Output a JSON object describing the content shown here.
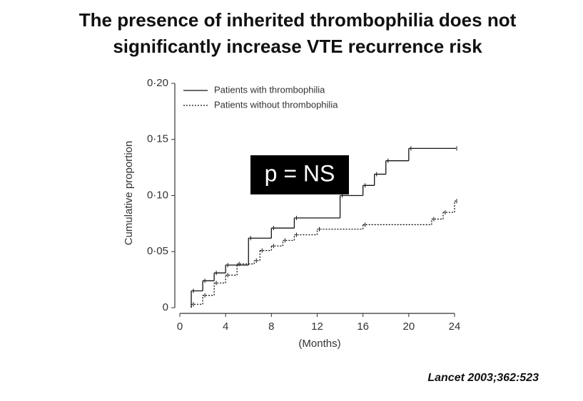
{
  "chart_data": {
    "type": "line",
    "drawstyle": "steps-post",
    "title": [
      "The presence of inherited thrombophilia does not",
      "significantly increase VTE recurrence risk"
    ],
    "xlabel": "(Months)",
    "ylabel": "Cumulative proportion",
    "xlim": [
      0,
      24
    ],
    "ylim": [
      0,
      0.2
    ],
    "xticks": [
      0,
      4,
      8,
      12,
      16,
      20,
      24
    ],
    "yticks": [
      0,
      {
        "value": 0.05,
        "label": "0·05"
      },
      {
        "value": 0.1,
        "label": "0·10"
      },
      {
        "value": 0.15,
        "label": "0·15"
      },
      {
        "value": 0.2,
        "label": "0·20"
      }
    ],
    "legend": "upper left",
    "series": [
      {
        "name": "Patients with thrombophilia",
        "color": "#111111",
        "dash": "solid",
        "x": [
          1,
          2,
          3,
          4,
          6,
          8,
          10,
          14,
          16,
          17,
          18,
          20,
          24
        ],
        "values": [
          0.015,
          0.024,
          0.031,
          0.038,
          0.062,
          0.071,
          0.08,
          0.1,
          0.109,
          0.119,
          0.131,
          0.142,
          0.142
        ]
      },
      {
        "name": "Patients without thrombophilia",
        "color": "#111111",
        "dash": "dotted",
        "x": [
          1,
          2,
          3,
          4,
          5,
          6.5,
          7,
          8,
          9,
          10,
          12,
          16,
          22,
          23,
          24
        ],
        "values": [
          0.003,
          0.011,
          0.022,
          0.029,
          0.039,
          0.042,
          0.051,
          0.055,
          0.06,
          0.065,
          0.07,
          0.074,
          0.079,
          0.085,
          0.095
        ]
      }
    ],
    "annotation": "p = NS",
    "citation": "Lancet 2003;362:523"
  }
}
